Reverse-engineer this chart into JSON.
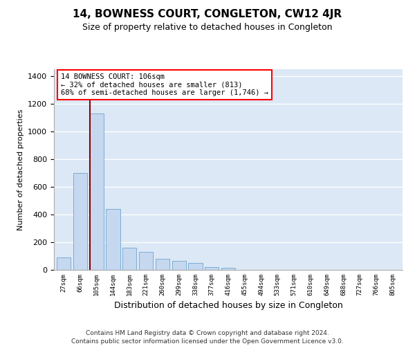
{
  "title": "14, BOWNESS COURT, CONGLETON, CW12 4JR",
  "subtitle": "Size of property relative to detached houses in Congleton",
  "xlabel": "Distribution of detached houses by size in Congleton",
  "ylabel": "Number of detached properties",
  "bar_color": "#c5d8f0",
  "bar_edgecolor": "#7aadd4",
  "background_color": "#dce8f5",
  "fig_background": "#ffffff",
  "grid_color": "#ffffff",
  "categories": [
    "27sqm",
    "66sqm",
    "105sqm",
    "144sqm",
    "183sqm",
    "221sqm",
    "260sqm",
    "299sqm",
    "338sqm",
    "377sqm",
    "416sqm",
    "455sqm",
    "494sqm",
    "533sqm",
    "571sqm",
    "610sqm",
    "649sqm",
    "688sqm",
    "727sqm",
    "766sqm",
    "805sqm"
  ],
  "values": [
    90,
    700,
    1130,
    440,
    160,
    130,
    80,
    65,
    50,
    20,
    15,
    0,
    0,
    0,
    0,
    0,
    0,
    0,
    0,
    0,
    0
  ],
  "ylim": [
    0,
    1450
  ],
  "yticks": [
    0,
    200,
    400,
    600,
    800,
    1000,
    1200,
    1400
  ],
  "redline_index": 2,
  "annotation_text": "14 BOWNESS COURT: 106sqm\n← 32% of detached houses are smaller (813)\n68% of semi-detached houses are larger (1,746) →",
  "footer_line1": "Contains HM Land Registry data © Crown copyright and database right 2024.",
  "footer_line2": "Contains public sector information licensed under the Open Government Licence v3.0."
}
